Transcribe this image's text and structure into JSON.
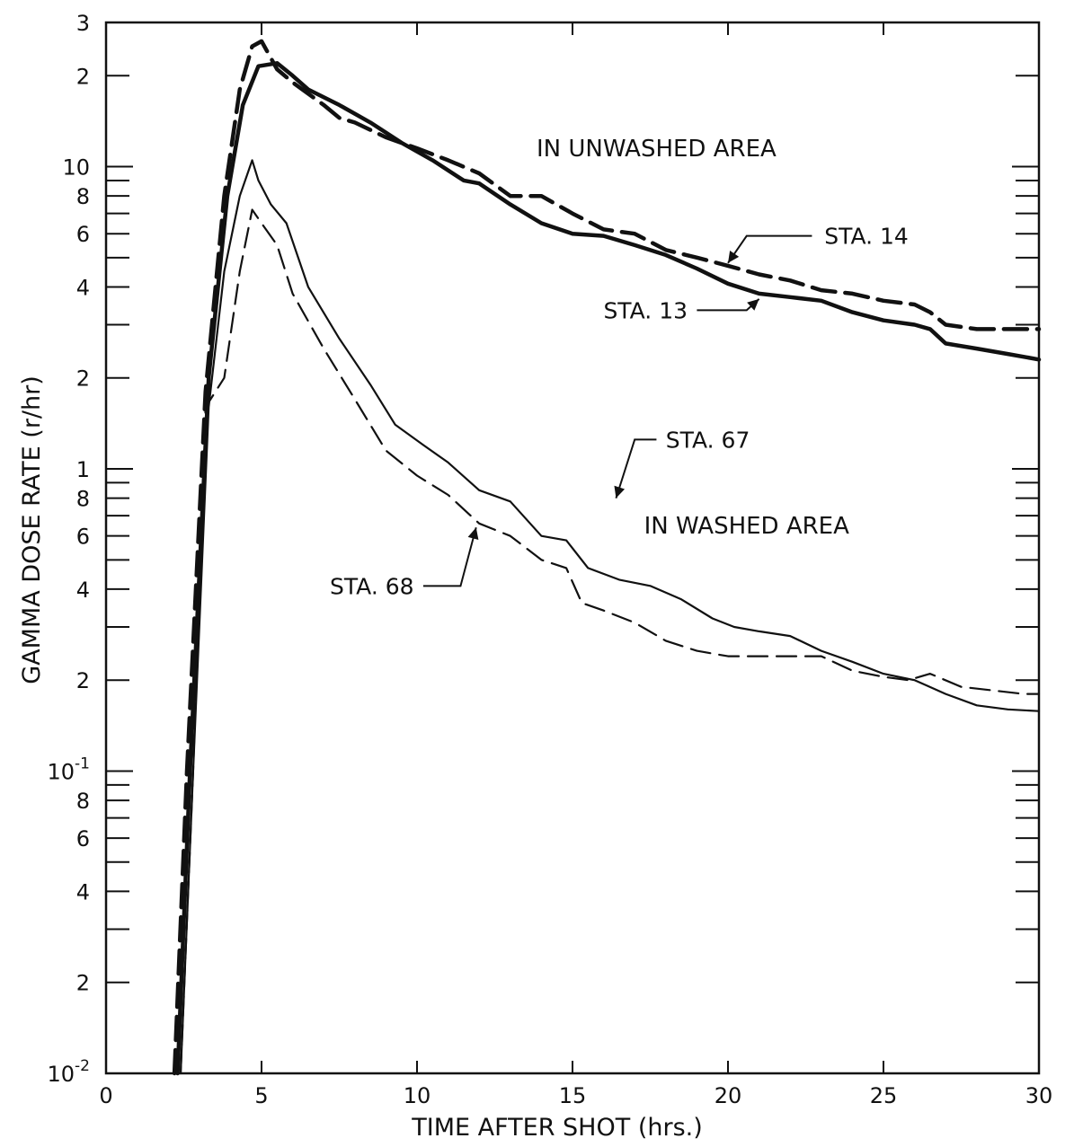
{
  "chart_data": {
    "type": "line",
    "xlabel": "TIME AFTER SHOT  (hrs.)",
    "ylabel": "GAMMA DOSE RATE  (r/hr)",
    "xlim": [
      0,
      30
    ],
    "ylim": [
      0.01,
      30
    ],
    "y_scale": "log",
    "grid": false,
    "x_ticks": [
      {
        "value": 0,
        "label": "0"
      },
      {
        "value": 5,
        "label": "5"
      },
      {
        "value": 10,
        "label": "10"
      },
      {
        "value": 15,
        "label": "15"
      },
      {
        "value": 20,
        "label": "20"
      },
      {
        "value": 25,
        "label": "25"
      },
      {
        "value": 30,
        "label": "30"
      }
    ],
    "y_labeled_ticks": [
      {
        "value": 0.01,
        "base": "10",
        "exp": "-2"
      },
      {
        "value": 0.02,
        "base": "2",
        "exp": ""
      },
      {
        "value": 0.04,
        "base": "4",
        "exp": ""
      },
      {
        "value": 0.06,
        "base": "6",
        "exp": ""
      },
      {
        "value": 0.08,
        "base": "8",
        "exp": ""
      },
      {
        "value": 0.1,
        "base": "10",
        "exp": "-1"
      },
      {
        "value": 0.2,
        "base": "2",
        "exp": ""
      },
      {
        "value": 0.4,
        "base": "4",
        "exp": ""
      },
      {
        "value": 0.6,
        "base": "6",
        "exp": ""
      },
      {
        "value": 0.8,
        "base": "8",
        "exp": ""
      },
      {
        "value": 1,
        "base": "1",
        "exp": ""
      },
      {
        "value": 2,
        "base": "2",
        "exp": ""
      },
      {
        "value": 4,
        "base": "4",
        "exp": ""
      },
      {
        "value": 6,
        "base": "6",
        "exp": ""
      },
      {
        "value": 8,
        "base": "8",
        "exp": ""
      },
      {
        "value": 10,
        "base": "10",
        "exp": ""
      },
      {
        "value": 20,
        "base": "2",
        "exp": ""
      },
      {
        "value": 30,
        "base": "3",
        "exp": ""
      }
    ],
    "annotations": [
      {
        "text": "IN  UNWASHED AREA",
        "x": 17.7,
        "y": 11.5
      },
      {
        "text": "IN  WASHED AREA",
        "x": 20.6,
        "y": 0.65
      }
    ],
    "series": [
      {
        "name": "STA. 14",
        "style": "dashed",
        "weight": "heavy",
        "x": [
          2.2,
          2.6,
          3.2,
          3.8,
          4.3,
          4.7,
          5.0,
          5.5,
          6.0,
          7.0,
          7.5,
          8.0,
          9.0,
          10.0,
          11.0,
          12.0,
          13.0,
          14.0,
          15.0,
          16.0,
          17.0,
          18.0,
          19.0,
          20.0,
          21.0,
          22.0,
          23.0,
          24.0,
          25.0,
          26.0,
          26.5,
          27.0,
          28.0,
          29.0,
          30.0
        ],
        "y": [
          0.01,
          0.1,
          1.8,
          8.0,
          18.0,
          25.0,
          26.0,
          21.0,
          19.0,
          16.0,
          14.5,
          14.0,
          12.5,
          11.5,
          10.5,
          9.5,
          8.0,
          8.0,
          7.0,
          6.2,
          6.0,
          5.3,
          5.0,
          4.7,
          4.4,
          4.2,
          3.9,
          3.8,
          3.6,
          3.5,
          3.3,
          3.0,
          2.9,
          2.9,
          2.9
        ]
      },
      {
        "name": "STA. 13",
        "style": "solid",
        "weight": "heavy",
        "x": [
          2.3,
          2.7,
          3.3,
          3.9,
          4.4,
          4.9,
          5.5,
          6.0,
          6.5,
          7.5,
          8.5,
          9.5,
          10.5,
          11.5,
          12.0,
          13.0,
          14.0,
          15.0,
          16.0,
          17.0,
          18.0,
          19.0,
          20.0,
          21.0,
          22.0,
          23.0,
          24.0,
          25.0,
          26.0,
          26.5,
          27.0,
          28.0,
          29.0,
          30.0
        ],
        "y": [
          0.01,
          0.1,
          2.0,
          8.0,
          16.0,
          21.5,
          22.0,
          20.0,
          18.0,
          16.0,
          14.0,
          12.0,
          10.5,
          9.0,
          8.8,
          7.5,
          6.5,
          6.0,
          5.9,
          5.5,
          5.1,
          4.6,
          4.1,
          3.8,
          3.7,
          3.6,
          3.3,
          3.1,
          3.0,
          2.9,
          2.6,
          2.5,
          2.4,
          2.3
        ]
      },
      {
        "name": "STA. 67",
        "style": "solid",
        "weight": "light",
        "x": [
          2.4,
          2.8,
          3.3,
          3.8,
          4.3,
          4.7,
          4.9,
          5.3,
          5.8,
          6.5,
          7.5,
          8.5,
          9.3,
          10.2,
          11.0,
          12.0,
          13.0,
          14.0,
          14.8,
          15.5,
          16.5,
          17.5,
          18.5,
          19.5,
          20.2,
          21.0,
          22.0,
          23.0,
          24.0,
          25.0,
          26.0,
          27.0,
          28.0,
          29.0,
          30.0
        ],
        "y": [
          0.01,
          0.1,
          1.6,
          4.5,
          8.0,
          10.5,
          9.0,
          7.5,
          6.5,
          4.0,
          2.7,
          1.9,
          1.4,
          1.2,
          1.05,
          0.85,
          0.78,
          0.6,
          0.58,
          0.47,
          0.43,
          0.41,
          0.37,
          0.32,
          0.3,
          0.29,
          0.28,
          0.25,
          0.23,
          0.21,
          0.2,
          0.18,
          0.165,
          0.16,
          0.158
        ]
      },
      {
        "name": "STA. 68",
        "style": "dashed",
        "weight": "light",
        "x": [
          2.4,
          2.8,
          3.2,
          3.8,
          4.3,
          4.7,
          5.0,
          5.5,
          6.0,
          7.0,
          8.0,
          9.0,
          10.0,
          11.0,
          12.0,
          13.0,
          14.0,
          14.8,
          15.3,
          16.0,
          17.0,
          18.0,
          19.0,
          20.0,
          21.0,
          22.0,
          23.0,
          24.0,
          25.0,
          25.8,
          26.5,
          27.5,
          28.5,
          29.5,
          30.0
        ],
        "y": [
          0.01,
          0.1,
          1.6,
          2.0,
          4.5,
          7.2,
          6.5,
          5.5,
          3.8,
          2.5,
          1.7,
          1.15,
          0.95,
          0.82,
          0.66,
          0.6,
          0.5,
          0.47,
          0.36,
          0.34,
          0.31,
          0.27,
          0.25,
          0.24,
          0.24,
          0.24,
          0.24,
          0.215,
          0.205,
          0.2,
          0.21,
          0.19,
          0.185,
          0.18,
          0.18
        ]
      }
    ]
  }
}
